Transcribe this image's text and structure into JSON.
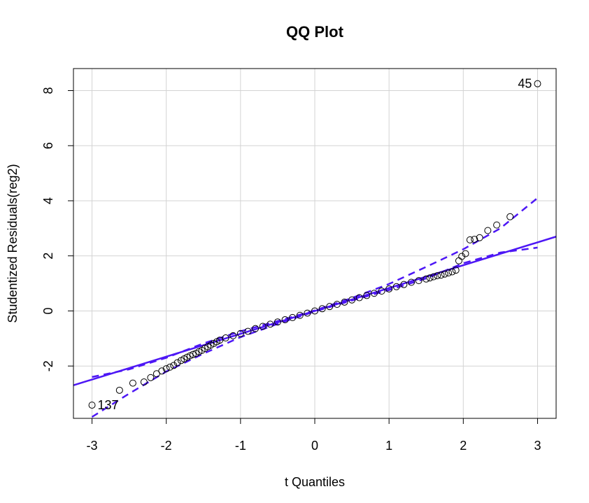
{
  "chart_data": {
    "type": "scatter",
    "title": "QQ Plot",
    "xlabel": "t Quantiles",
    "ylabel": "Studentized Residuals(reg2)",
    "xlim": [
      -3.25,
      3.25
    ],
    "ylim": [
      -3.9,
      8.8
    ],
    "xticks": [
      -3,
      -2,
      -1,
      0,
      1,
      2,
      3
    ],
    "xtick_labels": [
      "-3",
      "-2",
      "-1",
      "0",
      "1",
      "2",
      "3"
    ],
    "yticks": [
      -2,
      0,
      2,
      4,
      6,
      8
    ],
    "ytick_labels": [
      "-2",
      "0",
      "2",
      "4",
      "6",
      "8"
    ],
    "grid": true,
    "reference_line": {
      "intercept": 0.0,
      "slope": 0.83
    },
    "confidence_band": {
      "lower": [
        [
          -3.0,
          -3.85
        ],
        [
          -2.5,
          -3.0
        ],
        [
          -2.0,
          -2.2
        ],
        [
          -1.5,
          -1.55
        ],
        [
          -1.0,
          -0.95
        ],
        [
          -0.5,
          -0.47
        ],
        [
          0.0,
          -0.02
        ],
        [
          0.5,
          0.38
        ],
        [
          1.0,
          0.76
        ],
        [
          1.5,
          1.18
        ],
        [
          2.0,
          1.73
        ],
        [
          2.5,
          2.12
        ],
        [
          3.0,
          2.3
        ]
      ],
      "upper": [
        [
          -3.0,
          -2.4
        ],
        [
          -2.5,
          -2.12
        ],
        [
          -2.0,
          -1.7
        ],
        [
          -1.5,
          -1.18
        ],
        [
          -1.0,
          -0.74
        ],
        [
          -0.5,
          -0.37
        ],
        [
          0.0,
          0.02
        ],
        [
          0.5,
          0.47
        ],
        [
          1.0,
          0.98
        ],
        [
          1.5,
          1.6
        ],
        [
          2.0,
          2.24
        ],
        [
          2.5,
          3.0
        ],
        [
          3.0,
          4.1
        ]
      ]
    },
    "points": {
      "x": [
        -3.0,
        -2.63,
        -2.45,
        -2.3,
        -2.21,
        -2.13,
        -2.06,
        -2.0,
        -1.95,
        -1.9,
        -1.85,
        -1.8,
        -1.76,
        -1.72,
        -1.68,
        -1.64,
        -1.6,
        -1.56,
        -1.52,
        -1.48,
        -1.44,
        -1.4,
        -1.36,
        -1.32,
        -1.28,
        -1.2,
        -1.1,
        -1.0,
        -0.9,
        -0.8,
        -0.7,
        -0.6,
        -0.5,
        -0.4,
        -0.3,
        -0.2,
        -0.1,
        0.0,
        0.1,
        0.2,
        0.3,
        0.4,
        0.5,
        0.6,
        0.7,
        0.8,
        0.9,
        1.0,
        1.1,
        1.2,
        1.3,
        1.4,
        1.5,
        1.55,
        1.6,
        1.65,
        1.7,
        1.75,
        1.8,
        1.85,
        1.9,
        1.94,
        1.98,
        2.03,
        2.09,
        2.15,
        2.22,
        2.33,
        2.45,
        2.63,
        3.0
      ],
      "y": [
        -3.42,
        -2.88,
        -2.62,
        -2.58,
        -2.42,
        -2.28,
        -2.18,
        -2.1,
        -2.04,
        -1.98,
        -1.88,
        -1.8,
        -1.74,
        -1.68,
        -1.63,
        -1.58,
        -1.54,
        -1.48,
        -1.43,
        -1.36,
        -1.3,
        -1.24,
        -1.18,
        -1.12,
        -1.06,
        -0.98,
        -0.9,
        -0.82,
        -0.74,
        -0.64,
        -0.56,
        -0.48,
        -0.4,
        -0.32,
        -0.24,
        -0.16,
        -0.08,
        0.0,
        0.08,
        0.16,
        0.24,
        0.32,
        0.4,
        0.48,
        0.56,
        0.64,
        0.72,
        0.8,
        0.88,
        0.96,
        1.04,
        1.1,
        1.16,
        1.2,
        1.24,
        1.28,
        1.3,
        1.34,
        1.38,
        1.42,
        1.48,
        1.82,
        1.98,
        2.08,
        2.58,
        2.6,
        2.66,
        2.92,
        3.12,
        3.42,
        8.25
      ]
    },
    "point_labels": [
      {
        "text": "45",
        "x": 3.0,
        "y": 8.25,
        "side": "left"
      },
      {
        "text": "137",
        "x": -3.0,
        "y": -3.42,
        "side": "right"
      }
    ],
    "colors": {
      "line": "#4d17f5",
      "grid": "#d3d3d3",
      "points": "#000000"
    }
  }
}
